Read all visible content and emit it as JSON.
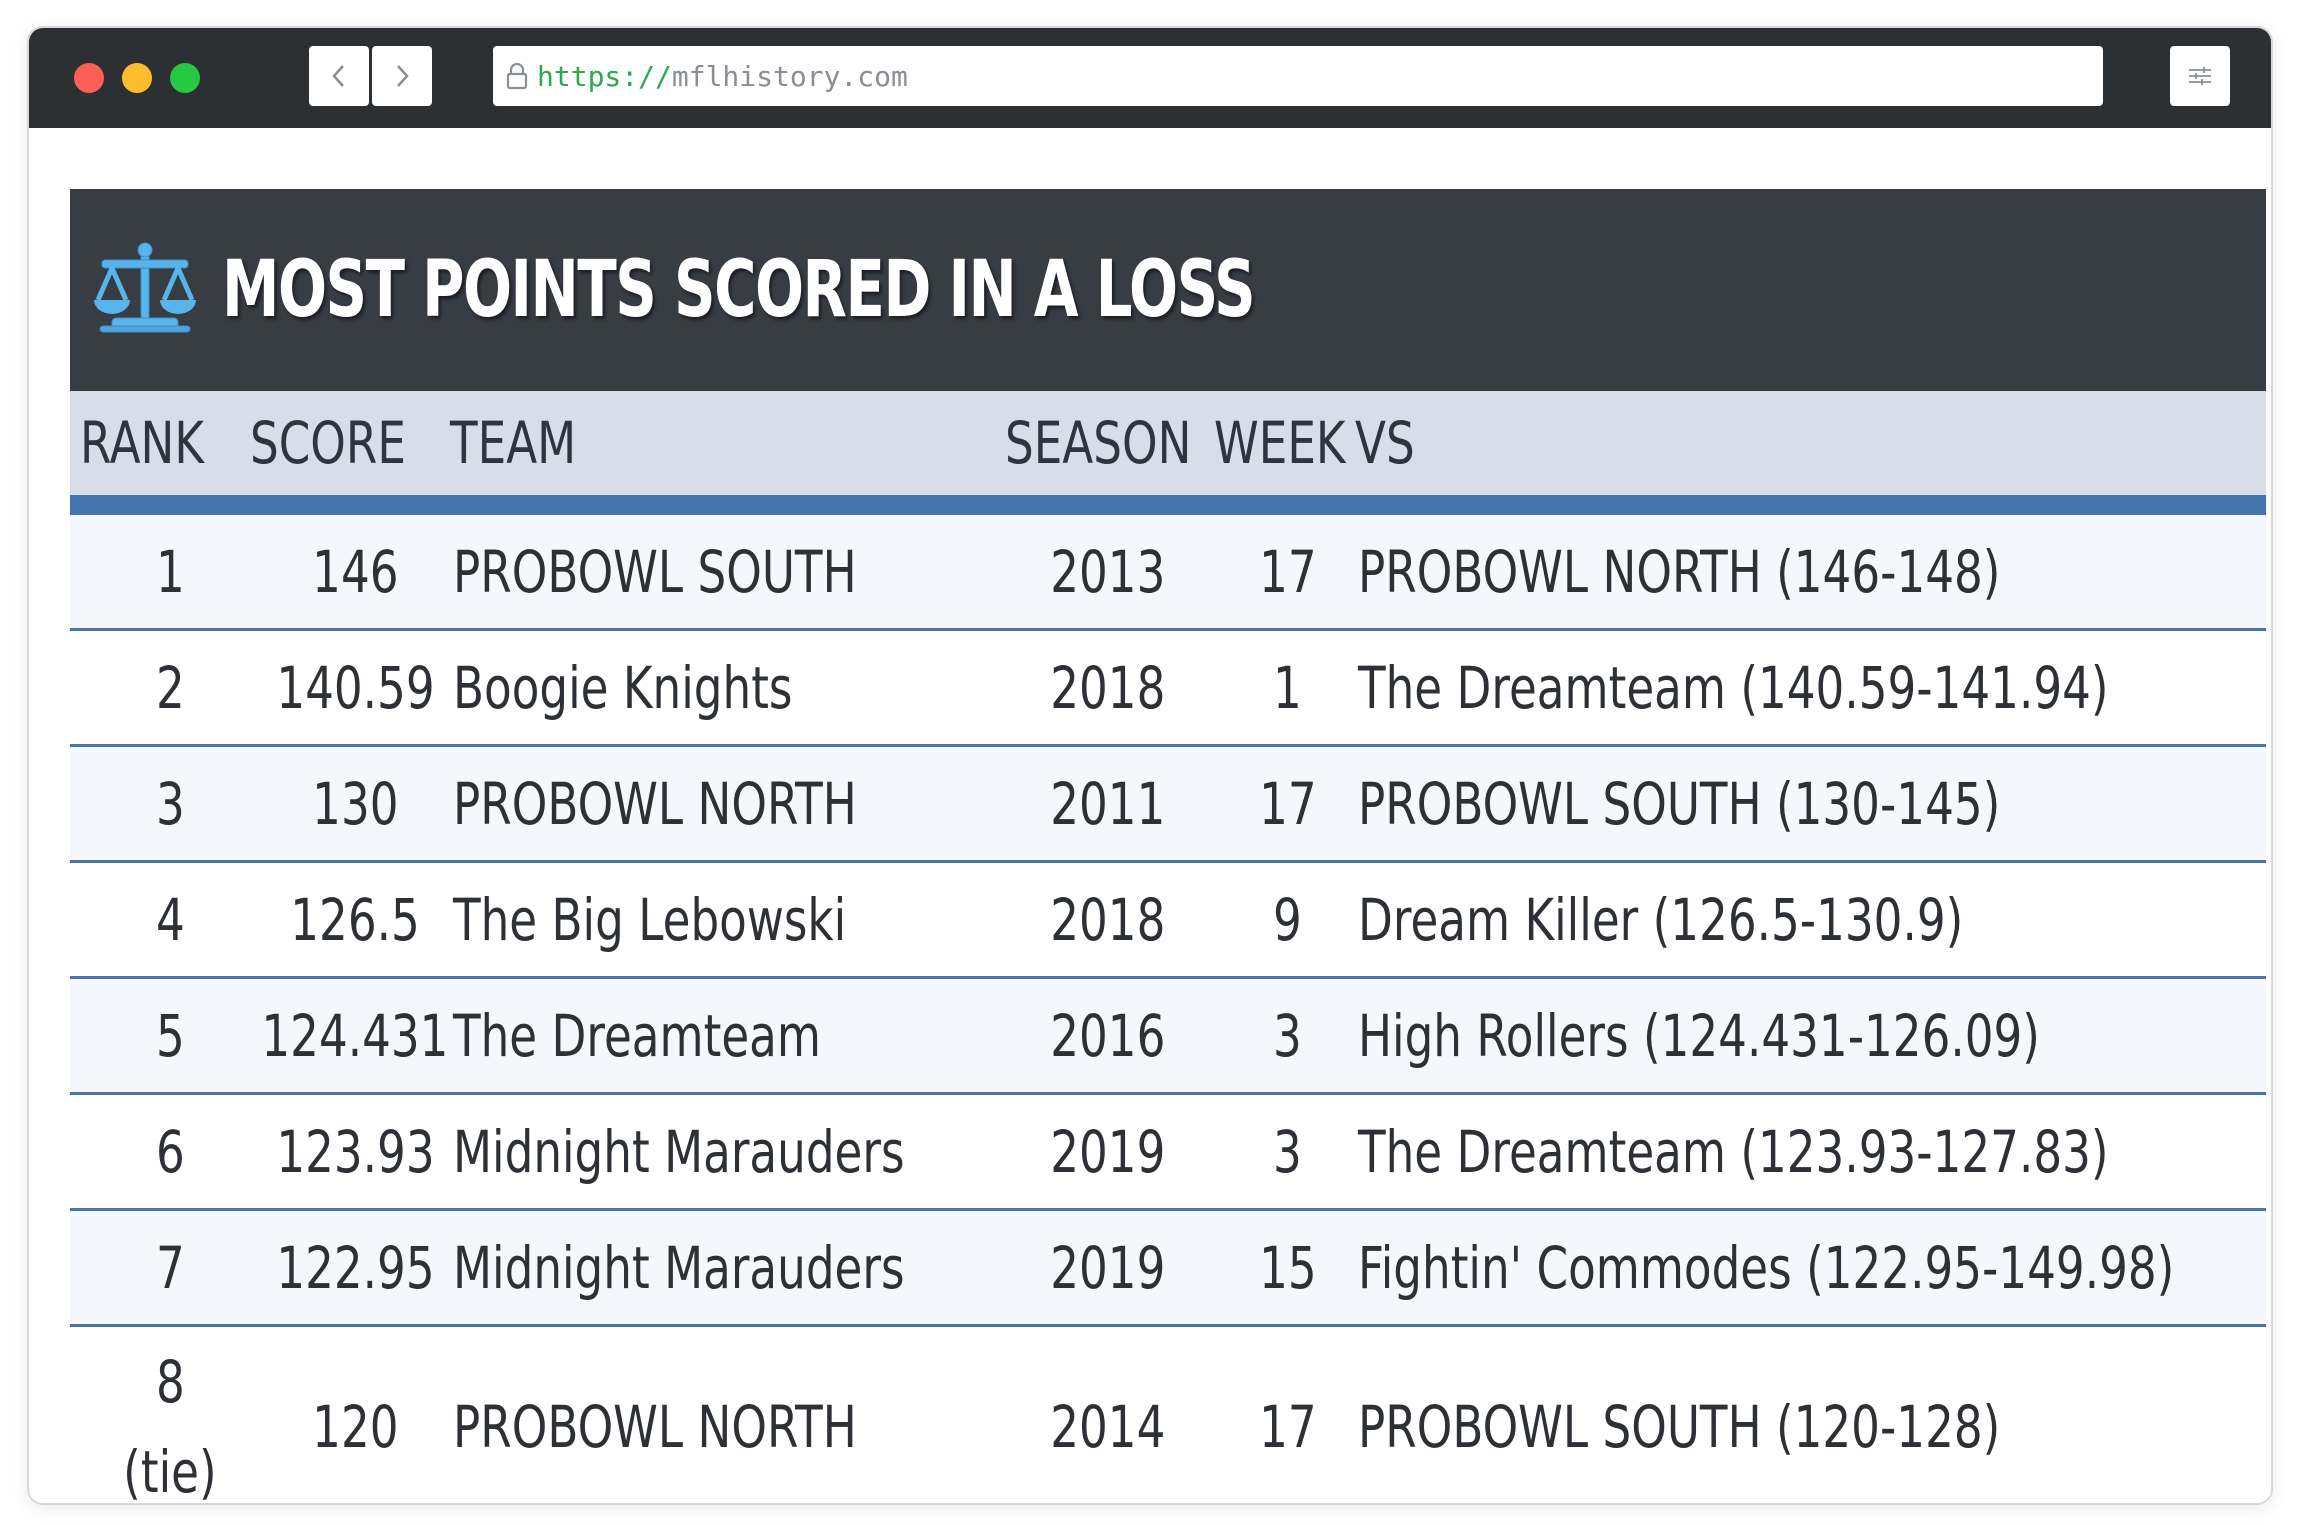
{
  "browser": {
    "url_scheme": "https://",
    "url_host": "mflhistory.com"
  },
  "table": {
    "title": "MOST POINTS SCORED IN A LOSS",
    "title_icon": "scale-icon",
    "columns": {
      "rank": "RANK",
      "score": "SCORE",
      "team": "TEAM",
      "season": "SEASON",
      "week": "WEEK",
      "vs": "VS"
    },
    "rows": [
      {
        "rank": "1",
        "score": "146",
        "team": "PROBOWL SOUTH",
        "season": "2013",
        "week": "17",
        "vs": "PROBOWL NORTH (146-148)"
      },
      {
        "rank": "2",
        "score": "140.59",
        "team": "Boogie Knights",
        "season": "2018",
        "week": "1",
        "vs": "The Dreamteam (140.59-141.94)"
      },
      {
        "rank": "3",
        "score": "130",
        "team": "PROBOWL NORTH",
        "season": "2011",
        "week": "17",
        "vs": "PROBOWL SOUTH (130-145)"
      },
      {
        "rank": "4",
        "score": "126.5",
        "team": "The Big Lebowski",
        "season": "2018",
        "week": "9",
        "vs": "Dream Killer (126.5-130.9)"
      },
      {
        "rank": "5",
        "score": "124.431",
        "team": "The Dreamteam",
        "season": "2016",
        "week": "3",
        "vs": "High Rollers (124.431-126.09)"
      },
      {
        "rank": "6",
        "score": "123.93",
        "team": "Midnight Marauders",
        "season": "2019",
        "week": "3",
        "vs": "The Dreamteam (123.93-127.83)"
      },
      {
        "rank": "7",
        "score": "122.95",
        "team": "Midnight Marauders",
        "season": "2019",
        "week": "15",
        "vs": "Fightin' Commodes (122.95-149.98)"
      },
      {
        "rank": "8",
        "rank_note": "(tie)",
        "score": "120",
        "team": "PROBOWL NORTH",
        "season": "2014",
        "week": "17",
        "vs": "PROBOWL SOUTH (120-128)"
      }
    ]
  },
  "colors": {
    "header_bg": "#383c43",
    "column_header_bg": "#d9dde7",
    "accent_blue": "#4574ad",
    "icon_blue": "#5ab4ec"
  }
}
